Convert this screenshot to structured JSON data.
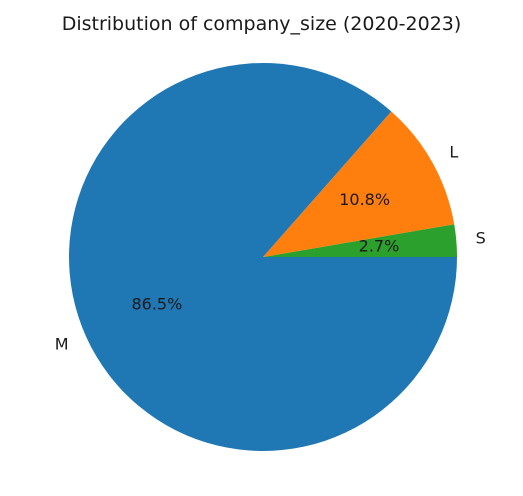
{
  "chart_data": {
    "type": "pie",
    "title": "Distribution of company_size (2020-2023)",
    "categories": [
      "S",
      "L",
      "M"
    ],
    "values": [
      2.7,
      10.8,
      86.5
    ],
    "pct_labels": [
      "2.7%",
      "10.8%",
      "86.5%"
    ],
    "colors": [
      "#2ca02c",
      "#ff7f0e",
      "#1f77b4"
    ]
  }
}
